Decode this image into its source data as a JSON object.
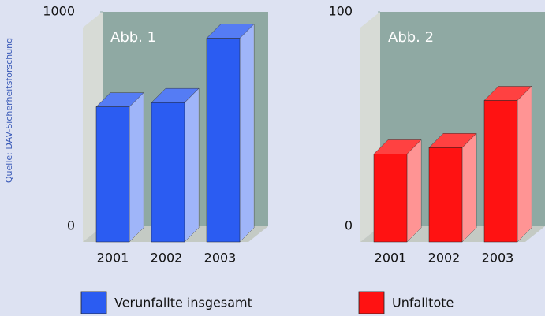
{
  "source": "Quelle: DAV-Sicherheitsforschung",
  "chart_data": [
    {
      "type": "bar",
      "annotation": "Abb. 1",
      "categories": [
        "2001",
        "2002",
        "2003"
      ],
      "series": [
        {
          "name": "Verunfallte insgesamt",
          "color": "#2b5cf2",
          "values": [
            630,
            650,
            950
          ]
        }
      ],
      "ylim": [
        0,
        1000
      ],
      "yticks": [
        0,
        1000
      ]
    },
    {
      "type": "bar",
      "annotation": "Abb. 2",
      "categories": [
        "2001",
        "2002",
        "2003"
      ],
      "series": [
        {
          "name": "Unfalltote",
          "color": "#ff1212",
          "values": [
            41,
            44,
            66
          ]
        }
      ],
      "ylim": [
        0,
        100
      ],
      "yticks": [
        0,
        100
      ]
    }
  ]
}
